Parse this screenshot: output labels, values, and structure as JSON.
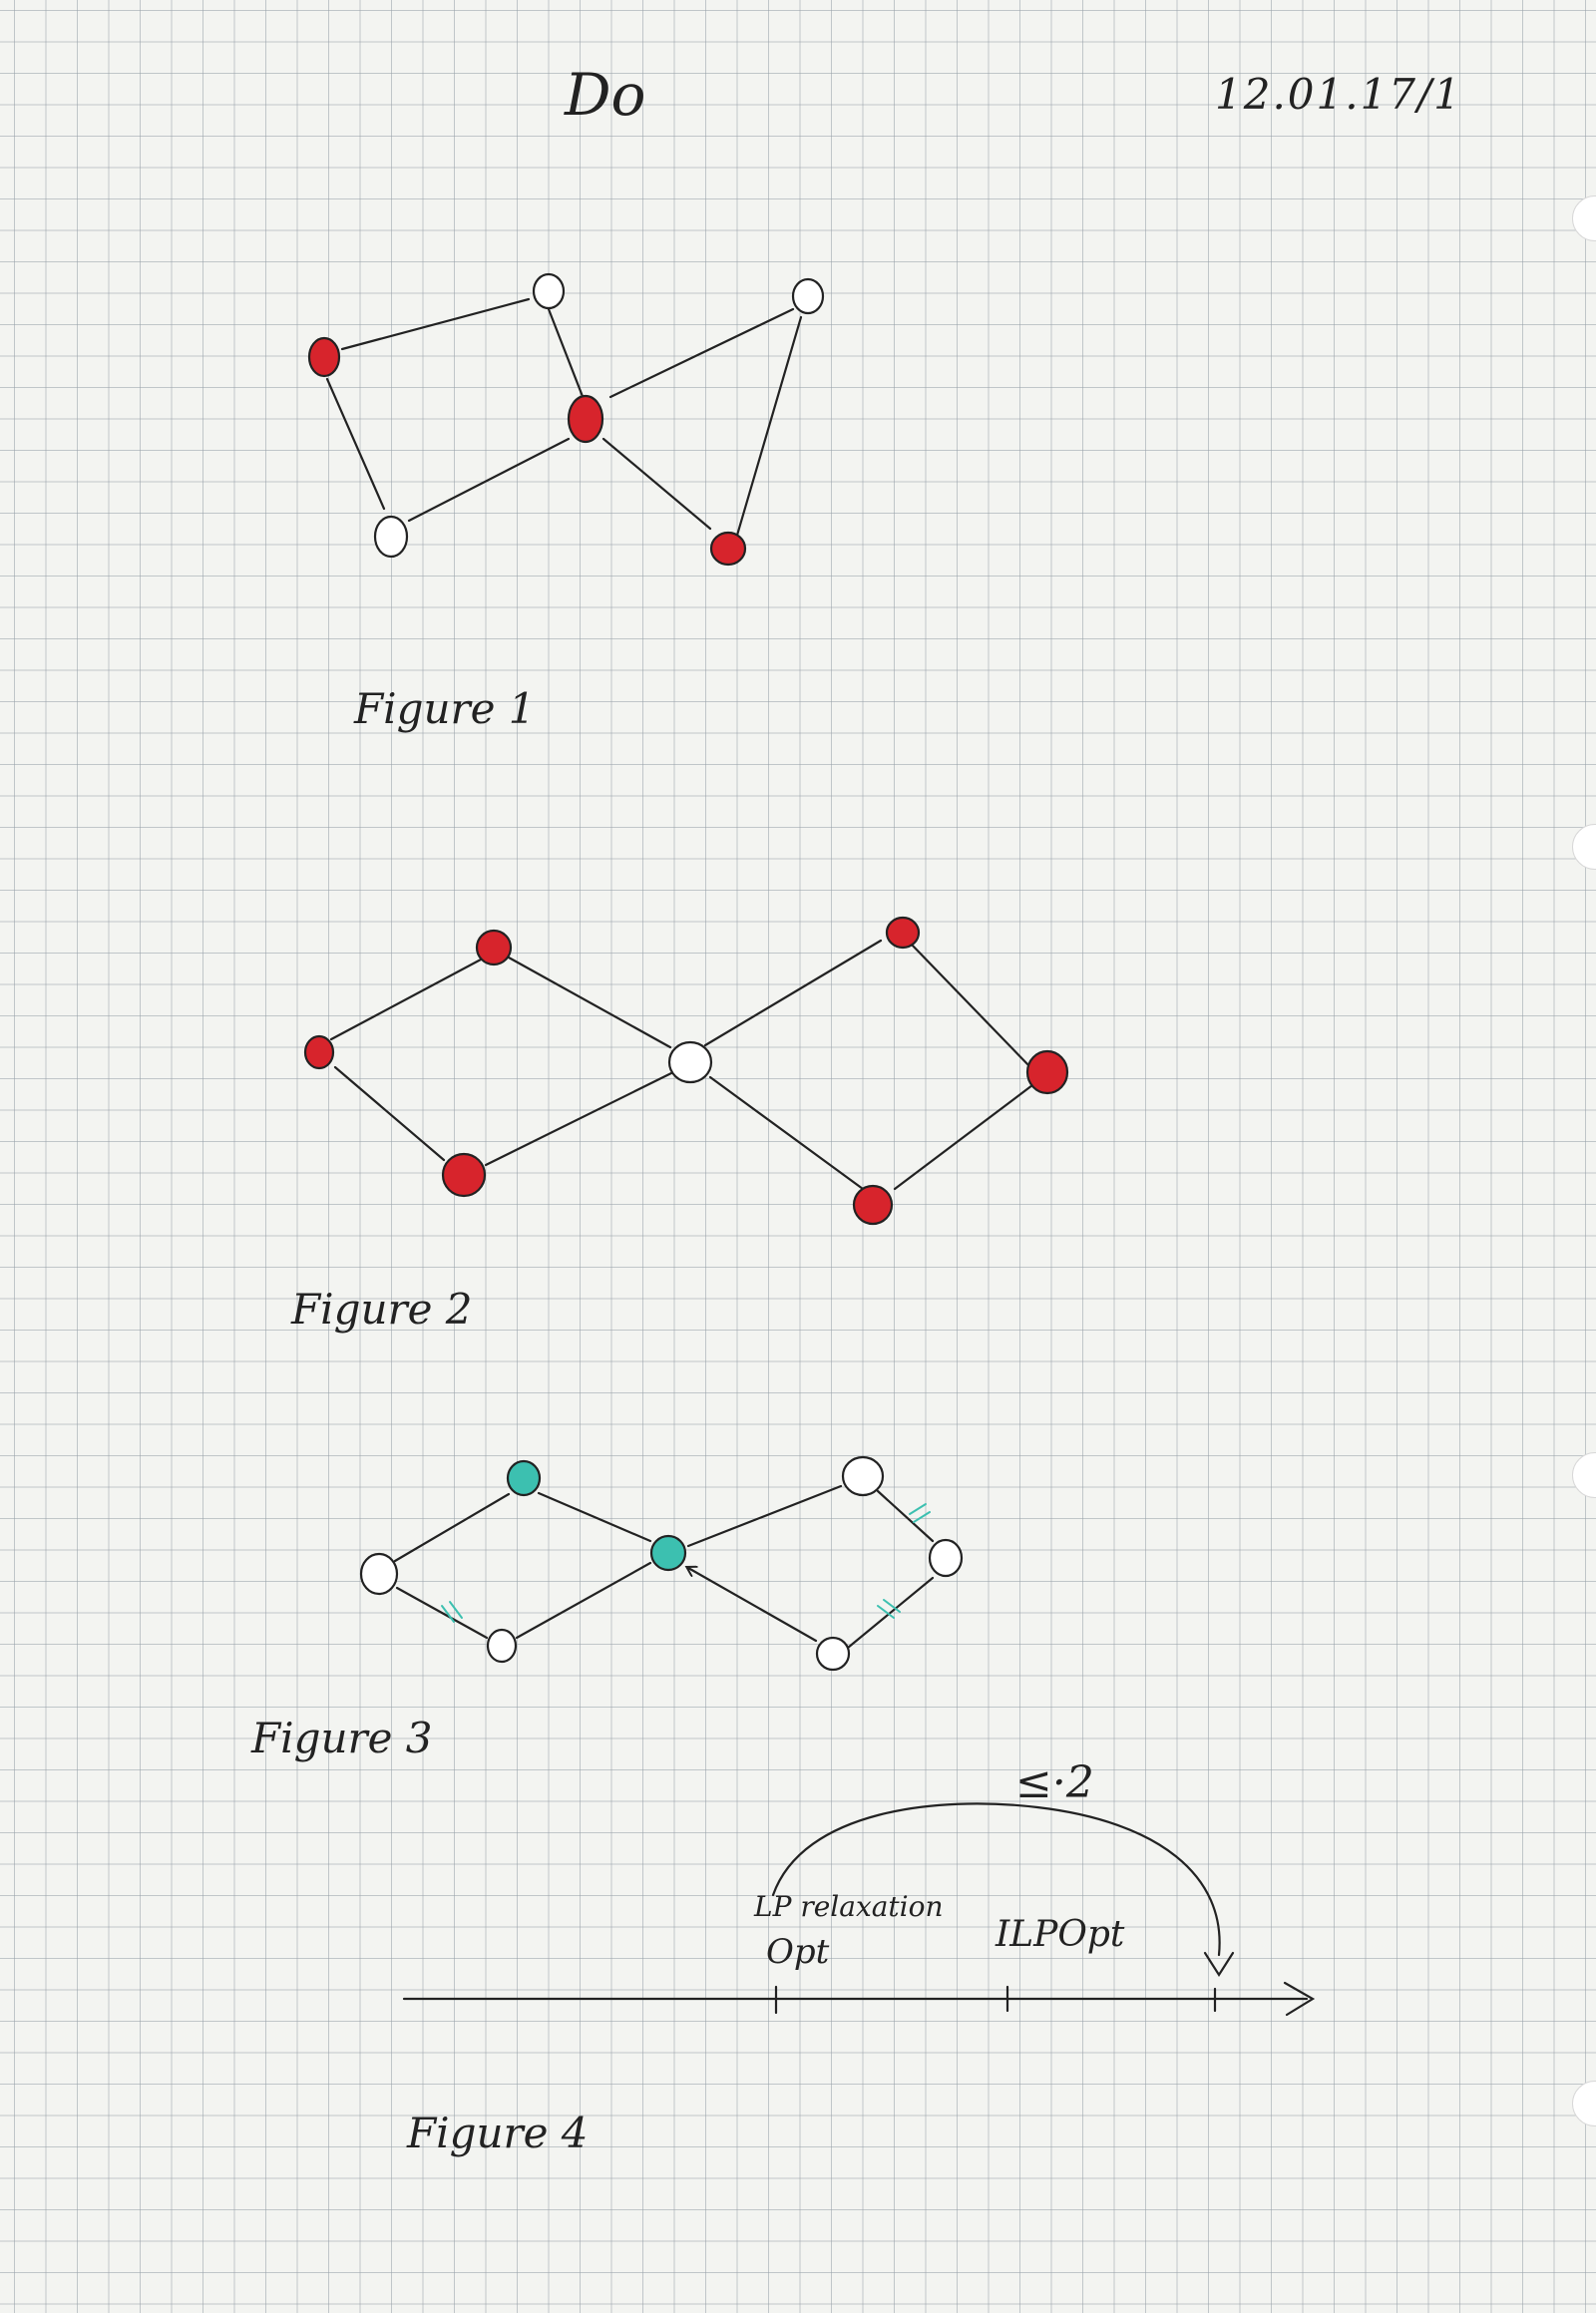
{
  "header": {
    "title": "Do",
    "date": "12.01.17/1"
  },
  "colors": {
    "red_vertex": "#d7242c",
    "teal_vertex": "#3cc0b0",
    "ink": "#222222",
    "paper": "#f3f4f1"
  },
  "figures": [
    {
      "caption": "Figure 1"
    },
    {
      "caption": "Figure 2"
    },
    {
      "caption": "Figure 3"
    },
    {
      "caption": "Figure 4"
    }
  ],
  "figure4": {
    "bound": "≤·2",
    "lp_relaxation": "LP relaxation",
    "opt": "Opt",
    "ilp_opt": "ILPOpt"
  }
}
